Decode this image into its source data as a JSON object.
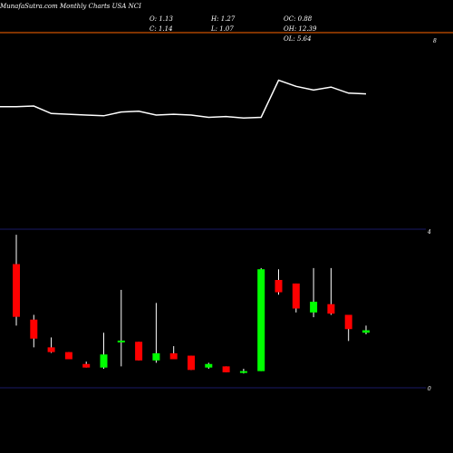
{
  "header": {
    "title": "MunafaSutra.com Monthly Charts USA NCI",
    "o": "O: 1.13",
    "c": "C: 1.14",
    "h": "H: 1.27",
    "l": "L: 1.07",
    "oc": "OC: 0.88",
    "oh": "OH: 12.39",
    "ol": "OL: 5.64"
  },
  "colors": {
    "up": "#00ff00",
    "down": "#ff0000",
    "separator": "#ff6600",
    "gridline": "#1a1a66",
    "line": "#ffffff"
  },
  "chart_data": [
    {
      "type": "line",
      "title": "",
      "axis_label": "8",
      "x": [
        1,
        2,
        3,
        4,
        5,
        6,
        7,
        8,
        9,
        10,
        11,
        12,
        13,
        14,
        15,
        16,
        17,
        18,
        19,
        20,
        21
      ],
      "y": [
        7.62,
        7.63,
        7.53,
        7.52,
        7.51,
        7.5,
        7.55,
        7.56,
        7.51,
        7.52,
        7.51,
        7.48,
        7.49,
        7.47,
        7.48,
        7.97,
        7.89,
        7.84,
        7.88,
        7.8,
        7.79
      ],
      "ylim": [
        6.0,
        8.6
      ]
    },
    {
      "type": "candlestick",
      "title": "",
      "tick_labels": [
        "4",
        "0"
      ],
      "ylim": [
        0,
        4
      ],
      "candles": [
        {
          "o": 3.12,
          "h": 3.86,
          "l": 1.57,
          "c": 1.79
        },
        {
          "o": 1.72,
          "h": 1.84,
          "l": 1.02,
          "c": 1.24
        },
        {
          "o": 1.02,
          "h": 1.27,
          "l": 0.88,
          "c": 0.9
        },
        {
          "o": 0.9,
          "h": 0.9,
          "l": 0.72,
          "c": 0.72
        },
        {
          "o": 0.6,
          "h": 0.66,
          "l": 0.51,
          "c": 0.51
        },
        {
          "o": 0.51,
          "h": 1.39,
          "l": 0.48,
          "c": 0.84
        },
        {
          "o": 1.19,
          "h": 2.47,
          "l": 0.54,
          "c": 1.19
        },
        {
          "o": 1.16,
          "h": 1.16,
          "l": 0.69,
          "c": 0.69
        },
        {
          "o": 0.69,
          "h": 2.14,
          "l": 0.63,
          "c": 0.87
        },
        {
          "o": 0.87,
          "h": 1.05,
          "l": 0.72,
          "c": 0.72
        },
        {
          "o": 0.81,
          "h": 0.81,
          "l": 0.45,
          "c": 0.45
        },
        {
          "o": 0.51,
          "h": 0.63,
          "l": 0.48,
          "c": 0.6
        },
        {
          "o": 0.54,
          "h": 0.54,
          "l": 0.39,
          "c": 0.39
        },
        {
          "o": 0.39,
          "h": 0.48,
          "l": 0.36,
          "c": 0.42
        },
        {
          "o": 0.42,
          "h": 3.02,
          "l": 0.42,
          "c": 2.99
        },
        {
          "o": 2.72,
          "h": 2.99,
          "l": 2.35,
          "c": 2.41
        },
        {
          "o": 2.63,
          "h": 2.63,
          "l": 1.9,
          "c": 2.0
        },
        {
          "o": 1.9,
          "h": 3.02,
          "l": 1.78,
          "c": 2.17
        },
        {
          "o": 2.11,
          "h": 3.02,
          "l": 1.84,
          "c": 1.87
        },
        {
          "o": 1.84,
          "h": 1.84,
          "l": 1.18,
          "c": 1.48
        },
        {
          "o": 1.39,
          "h": 1.57,
          "l": 1.35,
          "c": 1.45
        }
      ]
    }
  ]
}
